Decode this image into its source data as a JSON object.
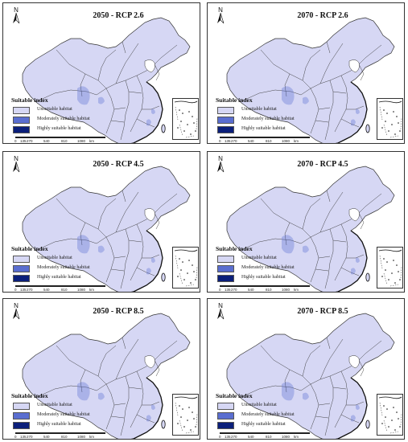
{
  "colors": {
    "unsuitable": "#d6d7f4",
    "moderate": "#5a6ed0",
    "high": "#0b1f7a",
    "land": "#d6d7f4",
    "border": "#333333",
    "coast": "#111111",
    "lake": "#ffffff"
  },
  "north_label": "N",
  "legend": {
    "title": "Suitable index",
    "items": [
      {
        "label": "Unsuitable habitat",
        "color_key": "unsuitable"
      },
      {
        "label": "Moderately suitable habitat",
        "color_key": "moderate"
      },
      {
        "label": "Highly suitable habitat",
        "color_key": "high"
      }
    ]
  },
  "scale": {
    "ticks": [
      "0",
      "135",
      "270",
      "540",
      "810",
      "1080"
    ],
    "unit": "km"
  },
  "panels": [
    {
      "title": "2050 - RCP 2.6"
    },
    {
      "title": "2070 - RCP 2.6"
    },
    {
      "title": "2050 - RCP 4.5"
    },
    {
      "title": "2070 - RCP 4.5"
    },
    {
      "title": "2050 - RCP 8.5"
    },
    {
      "title": "2070 - RCP 8.5"
    }
  ]
}
